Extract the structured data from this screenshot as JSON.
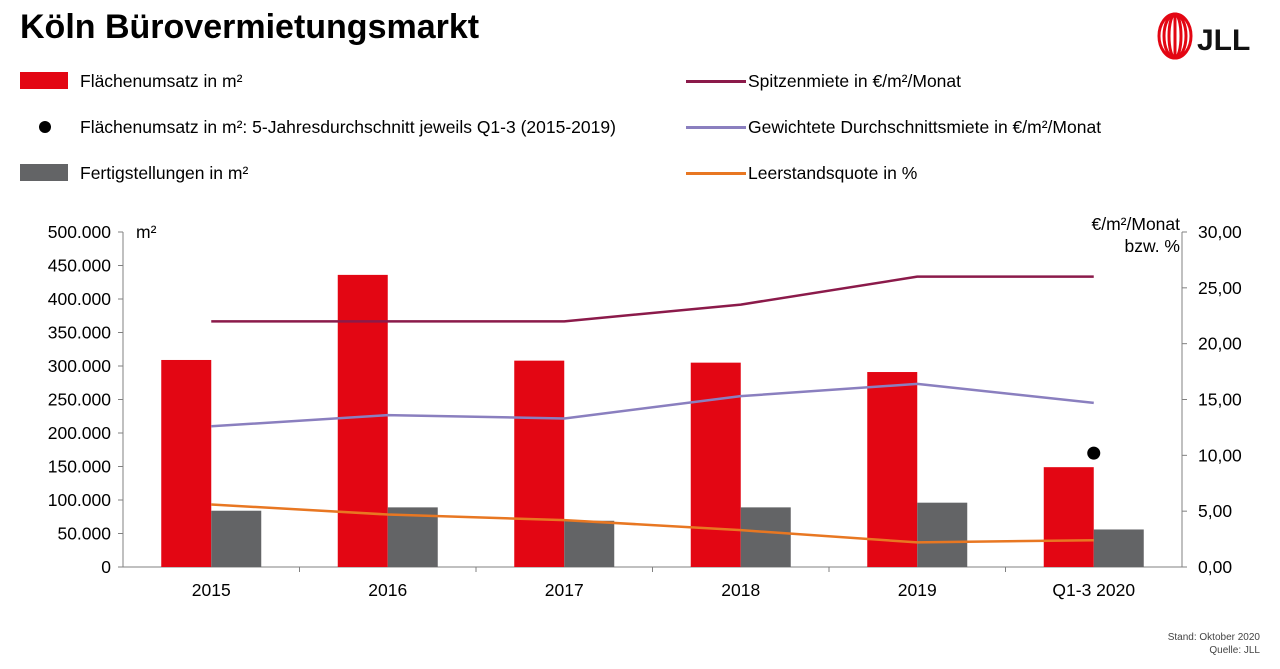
{
  "page": {
    "title": "Köln Bürovermietungsmarkt",
    "logo_text": "JLL",
    "footer": {
      "stand": "Stand: Oktober 2020",
      "quelle": "Quelle: JLL"
    }
  },
  "legend": {
    "bar_umsatz": "Flächenumsatz in m²",
    "dot_avg": "Flächenumsatz in m²: 5-Jahresdurchschnitt jeweils Q1-3 (2015-2019)",
    "bar_fertig": "Fertigstellungen in m²",
    "line_spitzen": "Spitzenmiete in €/m²/Monat",
    "line_durchschnitt": "Gewichtete Durchschnittsmiete in €/m²/Monat",
    "line_leerstand": "Leerstandsquote in %"
  },
  "colors": {
    "umsatz": "#e30613",
    "fertig": "#636466",
    "spitzen": "#8b1a4a",
    "durchschnitt": "#8a7fbf",
    "leerstand": "#e87722",
    "dot": "#000000",
    "axis": "#808080"
  },
  "chart_data": {
    "type": "bar",
    "categories": [
      "2015",
      "2016",
      "2017",
      "2018",
      "2019",
      "Q1-3 2020"
    ],
    "y_left": {
      "unit_label": "m²",
      "range": [
        0,
        500000
      ],
      "ticks": [
        "0",
        "50.000",
        "100.000",
        "150.000",
        "200.000",
        "250.000",
        "300.000",
        "350.000",
        "400.000",
        "450.000",
        "500.000"
      ]
    },
    "y_right": {
      "unit_label_1": "€/m²/Monat",
      "unit_label_2": "bzw. %",
      "range": [
        0,
        30
      ],
      "ticks": [
        "0,00",
        "5,00",
        "10,00",
        "15,00",
        "20,00",
        "25,00",
        "30,00"
      ]
    },
    "series": [
      {
        "name": "Flächenumsatz in m²",
        "kind": "bar",
        "axis": "left",
        "values": [
          309000,
          436000,
          308000,
          305000,
          291000,
          149000
        ]
      },
      {
        "name": "Fertigstellungen in m²",
        "kind": "bar",
        "axis": "left",
        "values": [
          84000,
          89000,
          69000,
          89000,
          96000,
          56000
        ]
      },
      {
        "name": "Flächenumsatz in m²: 5-Jahresdurchschnitt jeweils Q1-3 (2015-2019)",
        "kind": "dot",
        "axis": "left",
        "values": [
          null,
          null,
          null,
          null,
          null,
          170000
        ]
      },
      {
        "name": "Spitzenmiete in €/m²/Monat",
        "kind": "line",
        "axis": "right",
        "values": [
          22.0,
          22.0,
          22.0,
          23.5,
          26.0,
          26.0
        ]
      },
      {
        "name": "Gewichtete Durchschnittsmiete in €/m²/Monat",
        "kind": "line",
        "axis": "right",
        "values": [
          12.6,
          13.6,
          13.3,
          15.3,
          16.4,
          14.7
        ]
      },
      {
        "name": "Leerstandsquote in %",
        "kind": "line",
        "axis": "right",
        "values": [
          5.6,
          4.7,
          4.2,
          3.3,
          2.2,
          2.4
        ]
      }
    ]
  }
}
